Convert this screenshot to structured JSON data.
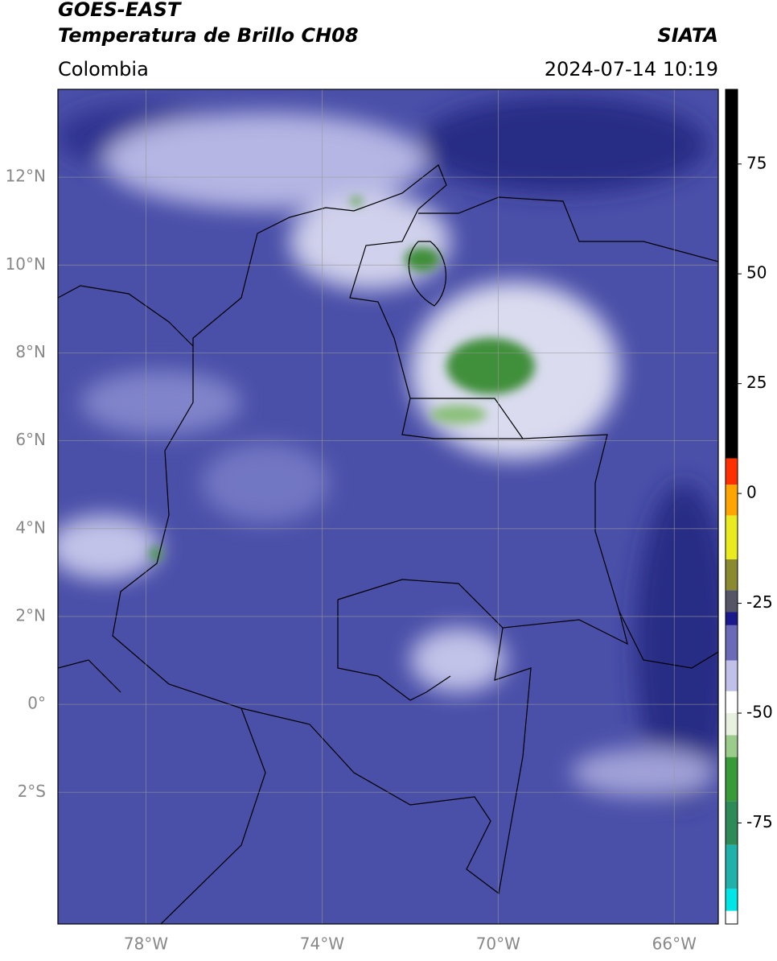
{
  "header": {
    "title": "GOES-EAST",
    "subtitle": "Temperatura de Brillo CH08",
    "region": "Colombia",
    "source": "SIATA",
    "datetime": "2024-07-14 10:19"
  },
  "map": {
    "xlim": [
      -80,
      -65
    ],
    "ylim": [
      -5,
      14
    ],
    "xticks": [
      {
        "value": -78,
        "label": "78°W"
      },
      {
        "value": -74,
        "label": "74°W"
      },
      {
        "value": -70,
        "label": "70°W"
      },
      {
        "value": -66,
        "label": "66°W"
      }
    ],
    "yticks": [
      {
        "value": 12,
        "label": "12°N"
      },
      {
        "value": 10,
        "label": "10°N"
      },
      {
        "value": 8,
        "label": "8°N"
      },
      {
        "value": 6,
        "label": "6°N"
      },
      {
        "value": 4,
        "label": "4°N"
      },
      {
        "value": 2,
        "label": "2°N"
      },
      {
        "value": 0,
        "label": "0°"
      },
      {
        "value": -2,
        "label": "2°S"
      }
    ],
    "grid": true
  },
  "colorbar": {
    "lim": [
      -98,
      92
    ],
    "ticks": [
      75,
      50,
      25,
      0,
      -25,
      -50,
      -75
    ],
    "stops": [
      {
        "value": -98,
        "color": "#ffffff"
      },
      {
        "value": -95,
        "color": "#00e5e5"
      },
      {
        "value": -90,
        "color": "#20b2aa"
      },
      {
        "value": -80,
        "color": "#2e8b57"
      },
      {
        "value": -70,
        "color": "#3a9a3a"
      },
      {
        "value": -60,
        "color": "#9ccc8c"
      },
      {
        "value": -55,
        "color": "#e8f0e0"
      },
      {
        "value": -50,
        "color": "#ffffff"
      },
      {
        "value": -45,
        "color": "#c0c0e8"
      },
      {
        "value": -38,
        "color": "#6a6ab8"
      },
      {
        "value": -30,
        "color": "#1a1a8c"
      },
      {
        "value": -27,
        "color": "#555566"
      },
      {
        "value": -22,
        "color": "#8a8a30"
      },
      {
        "value": -15,
        "color": "#eaea20"
      },
      {
        "value": -5,
        "color": "#ffa500"
      },
      {
        "value": 2,
        "color": "#ff3000"
      },
      {
        "value": 8,
        "color": "#000000"
      }
    ]
  }
}
